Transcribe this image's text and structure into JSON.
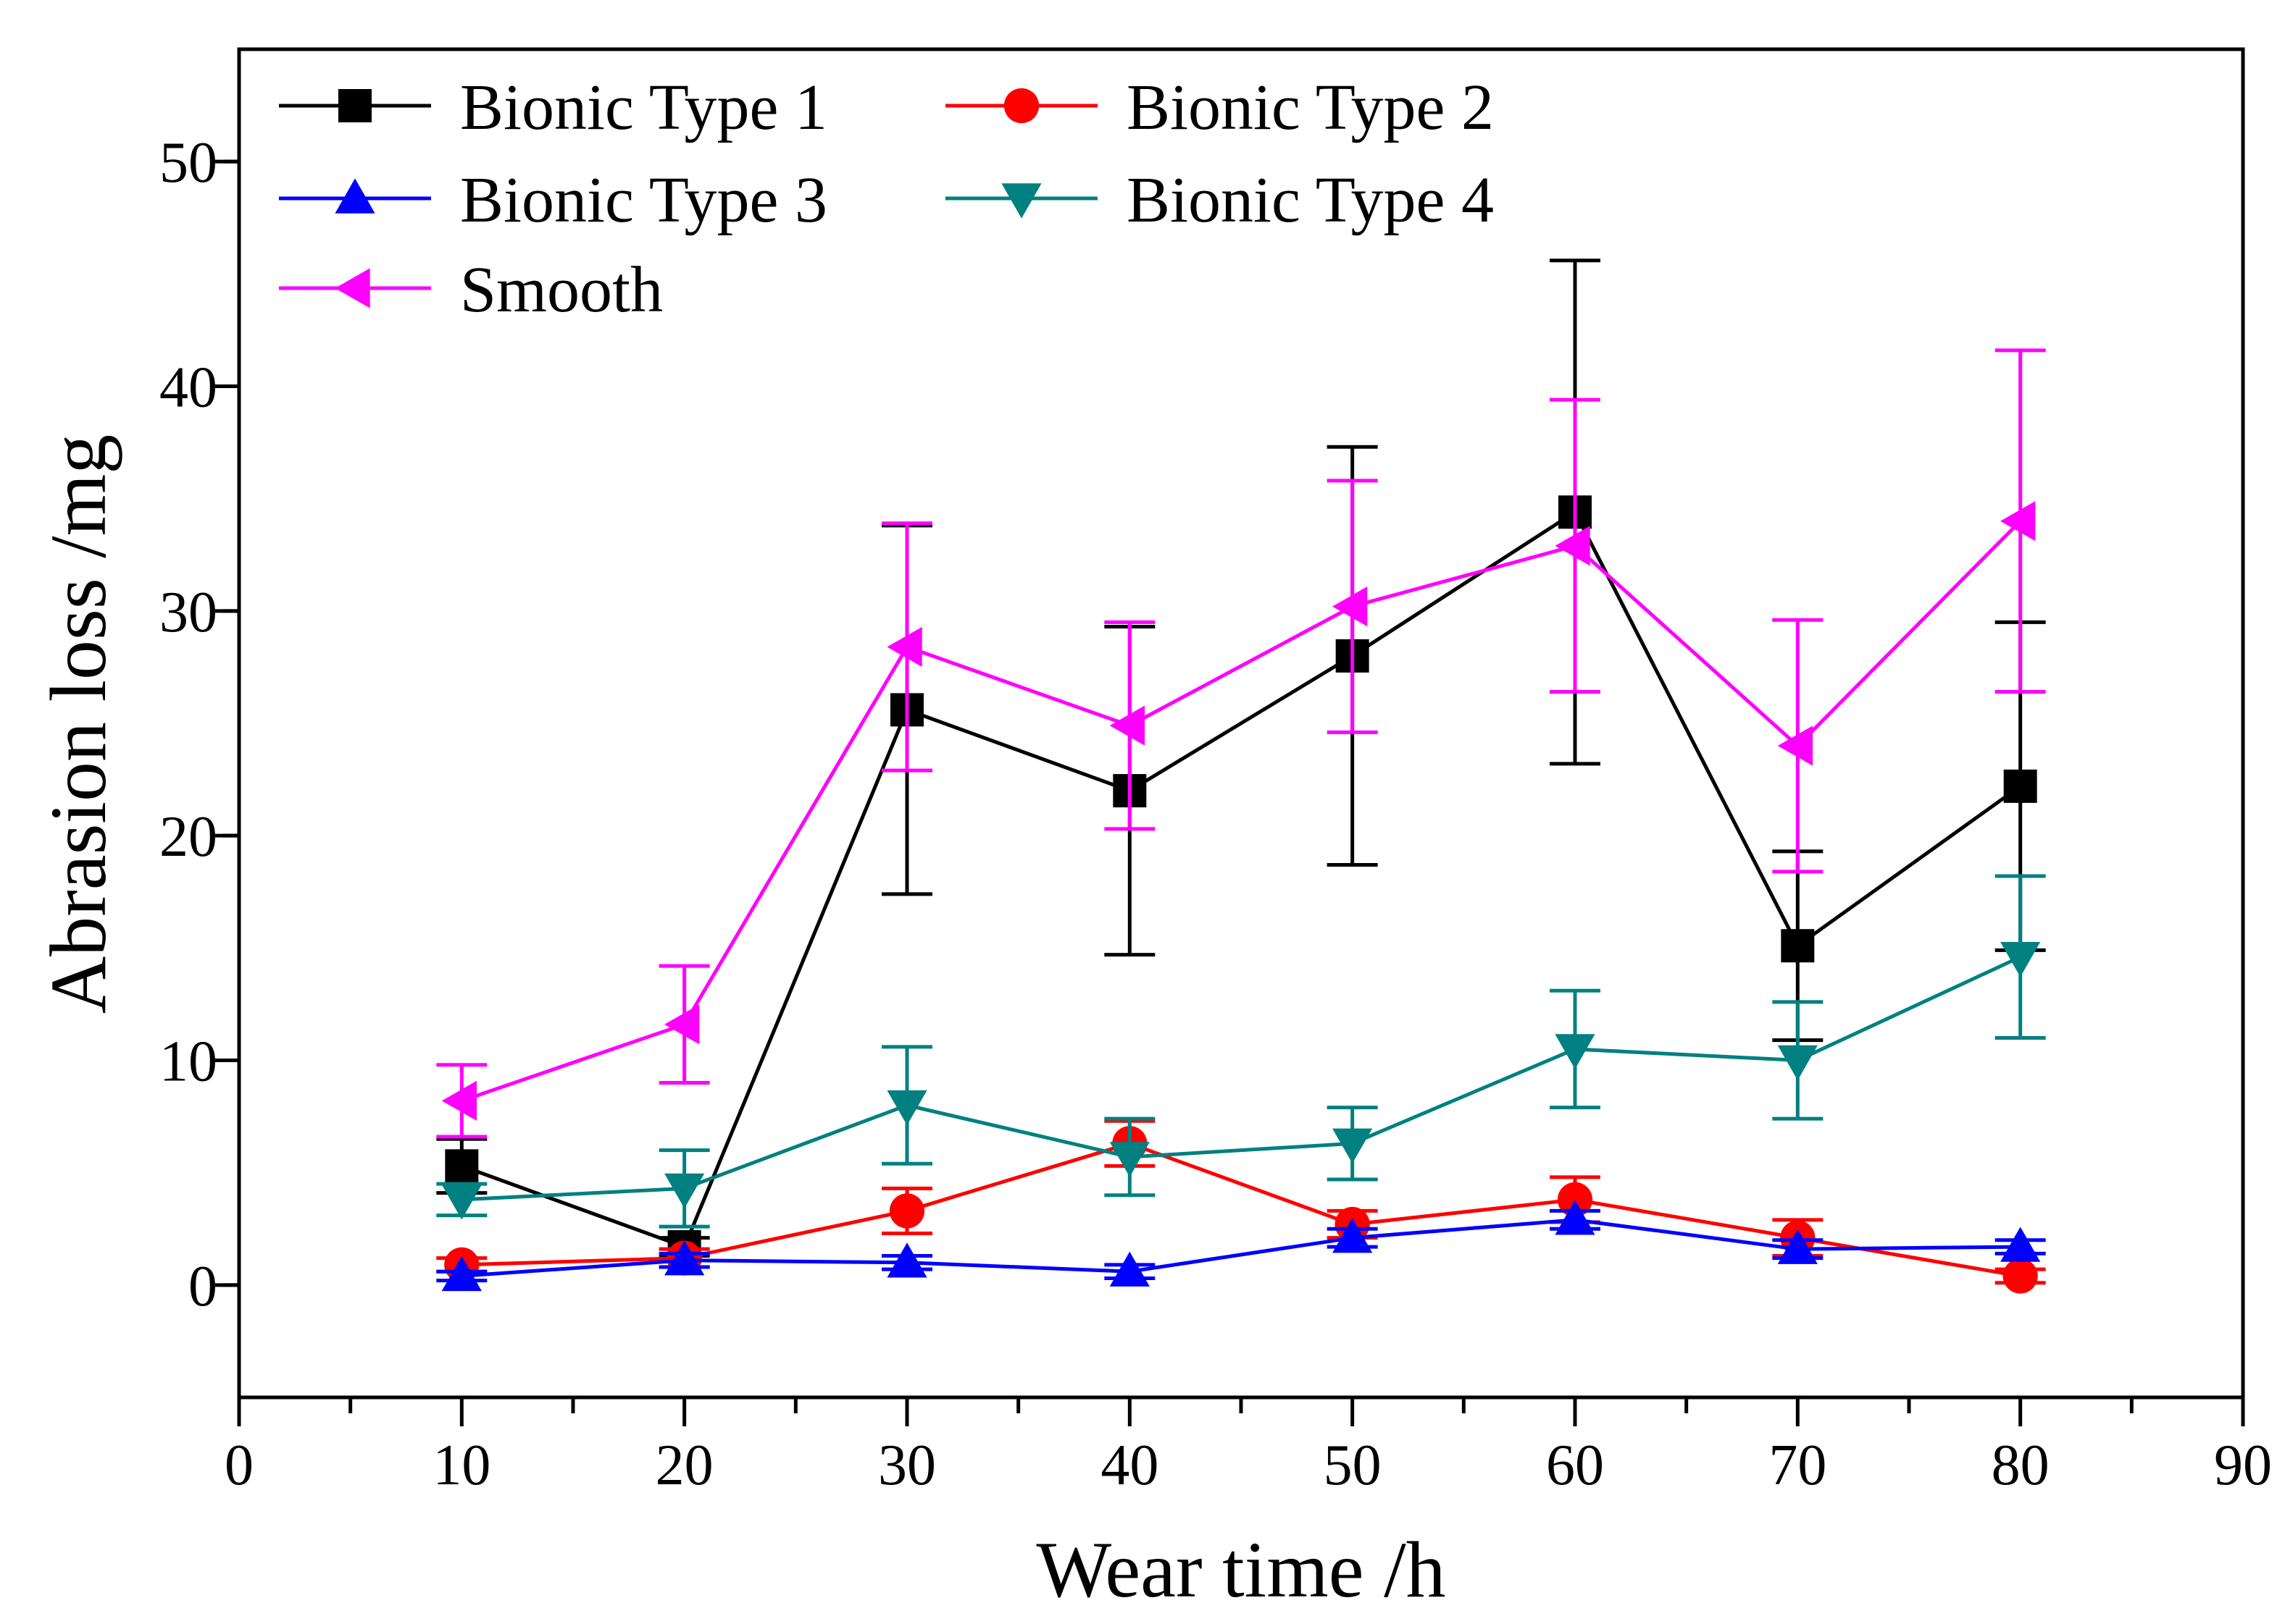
{
  "chart_data": {
    "type": "line",
    "xlabel": "Wear time /h",
    "ylabel": "Abrasion loss /mg",
    "xlim": [
      0,
      90
    ],
    "ylim": [
      -5,
      55
    ],
    "xticks": [
      0,
      10,
      20,
      30,
      40,
      50,
      60,
      70,
      80,
      90
    ],
    "yticks": [
      0,
      10,
      20,
      30,
      40,
      50
    ],
    "grid": false,
    "legend_position": "top-left",
    "x": [
      10,
      20,
      30,
      40,
      50,
      60,
      70,
      80
    ],
    "series": [
      {
        "name": "Bionic Type 1",
        "color": "#000000",
        "marker": "square",
        "values": [
          5.3,
          1.7,
          25.6,
          22.0,
          28.0,
          34.4,
          15.1,
          22.2
        ],
        "errors": [
          1.2,
          0.4,
          8.2,
          7.3,
          9.3,
          11.2,
          4.2,
          7.3
        ]
      },
      {
        "name": "Bionic Type 2",
        "color": "#ff0000",
        "marker": "circle",
        "values": [
          0.9,
          1.2,
          3.3,
          6.3,
          2.7,
          3.8,
          2.1,
          0.4
        ],
        "errors": [
          0.3,
          0.4,
          1.0,
          1.0,
          0.6,
          1.0,
          0.8,
          0.3
        ]
      },
      {
        "name": "Bionic Type 3",
        "color": "#0000ff",
        "marker": "triangle-up",
        "values": [
          0.4,
          1.1,
          1.0,
          0.6,
          2.1,
          2.9,
          1.6,
          1.7
        ],
        "errors": [
          0.2,
          0.3,
          0.3,
          0.3,
          0.4,
          0.4,
          0.4,
          0.3
        ]
      },
      {
        "name": "Bionic Type 4",
        "color": "#008080",
        "marker": "triangle-down",
        "values": [
          3.8,
          4.3,
          8.0,
          5.7,
          6.3,
          10.5,
          10.0,
          14.6
        ],
        "errors": [
          0.7,
          1.7,
          2.6,
          1.7,
          1.6,
          2.6,
          2.6,
          3.6
        ]
      },
      {
        "name": "Smooth",
        "color": "#ff00ff",
        "marker": "triangle-left",
        "values": [
          8.2,
          11.6,
          28.4,
          24.9,
          30.2,
          32.9,
          24.0,
          34.0
        ],
        "errors": [
          1.6,
          2.6,
          5.5,
          4.6,
          5.6,
          6.5,
          5.6,
          7.6
        ]
      }
    ]
  }
}
